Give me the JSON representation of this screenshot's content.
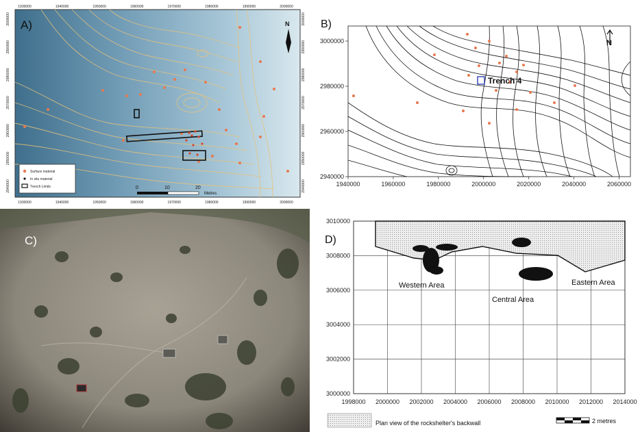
{
  "panelA": {
    "label": "A)",
    "x_ticks": [
      "1930000",
      "1940000",
      "1950000",
      "1960000",
      "1970000",
      "1980000",
      "1990000",
      "2000000"
    ],
    "y_ticks": [
      "3000000",
      "2990000",
      "2980000",
      "2970000",
      "2960000",
      "2950000",
      "2940000"
    ],
    "legend": [
      "Surface material",
      "In situ material",
      "Trench Limits"
    ],
    "scale": {
      "ticks": [
        "0",
        "10",
        "20"
      ],
      "unit": "Metres"
    },
    "north": "N"
  },
  "panelB": {
    "label": "B)",
    "x_ticks": [
      "1940000",
      "1960000",
      "1980000",
      "2000000",
      "2020000",
      "2040000",
      "2060000"
    ],
    "y_ticks": [
      "3000000",
      "2980000",
      "2960000",
      "2940000"
    ],
    "trench_label": "Trench 4",
    "north": "N"
  },
  "panelC": {
    "label": "C)"
  },
  "panelD": {
    "label": "D)",
    "x_ticks": [
      "1998000",
      "2000000",
      "2002000",
      "2004000",
      "2006000",
      "2008000",
      "2010000",
      "2012000",
      "2014000"
    ],
    "y_ticks": [
      "3010000",
      "3008000",
      "3006000",
      "3004000",
      "3002000",
      "3000000"
    ],
    "areas": [
      "Western Area",
      "Central Area",
      "Eastern Area"
    ],
    "legend_label": "Plan view of the rockshelter's backwall",
    "scale_label": "2 metres"
  }
}
